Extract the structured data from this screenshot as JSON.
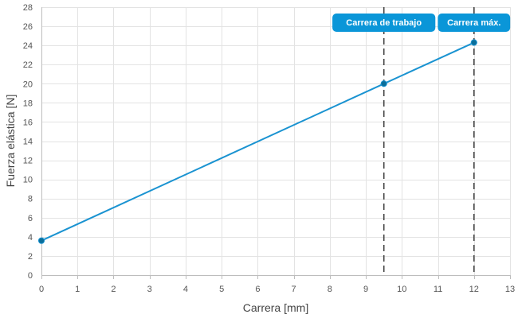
{
  "chart_data": {
    "type": "line",
    "xlabel": "Carrera [mm]",
    "ylabel": "Fuerza elástica [N]",
    "xlim": [
      0,
      13
    ],
    "ylim": [
      0,
      28
    ],
    "x_ticks": [
      0,
      1,
      2,
      3,
      4,
      5,
      6,
      7,
      8,
      9,
      10,
      11,
      12,
      13
    ],
    "y_ticks": [
      0,
      2,
      4,
      6,
      8,
      10,
      12,
      14,
      16,
      18,
      20,
      22,
      24,
      26,
      28
    ],
    "grid": true,
    "series": [
      {
        "color": "#1a93d1",
        "points": [
          {
            "x": 0,
            "y": 3.6
          },
          {
            "x": 9.5,
            "y": 20
          },
          {
            "x": 12,
            "y": 24.3
          }
        ]
      }
    ],
    "reference_lines": [
      {
        "x": 9.5,
        "label": "Carrera de trabajo"
      },
      {
        "x": 12,
        "label": "Carrera máx."
      }
    ],
    "colors": {
      "series": "#1a93d1",
      "marker": "#0b6e99",
      "annotation_bg": "#0a96d8",
      "reference_line": "#444444"
    }
  }
}
